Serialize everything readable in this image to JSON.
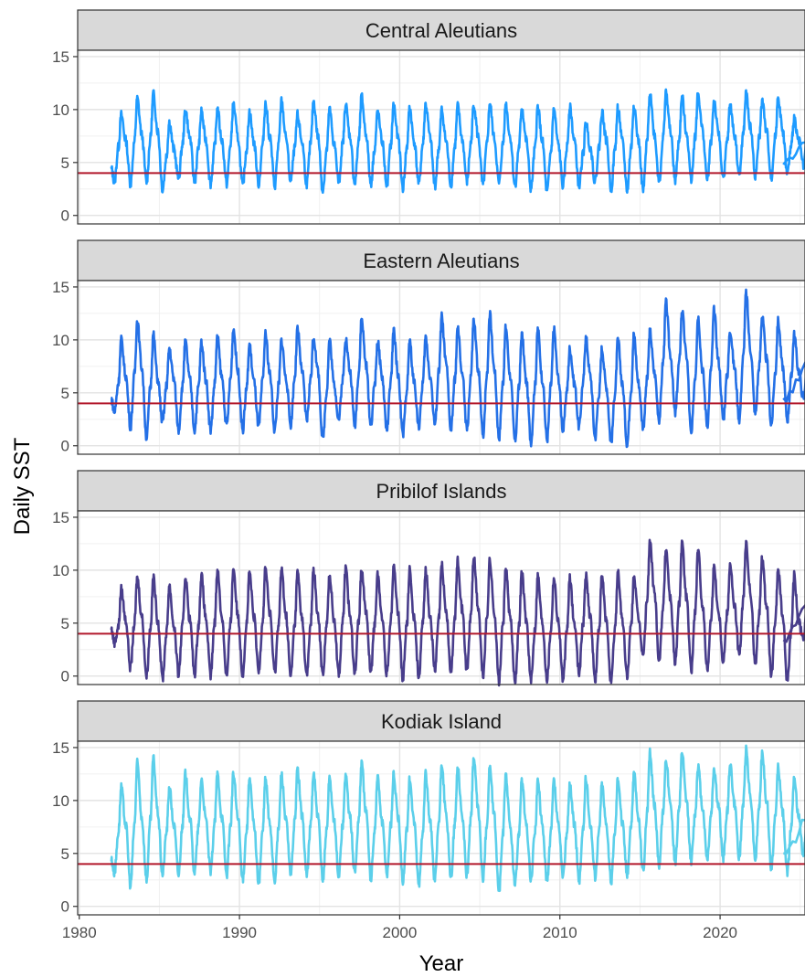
{
  "chart_data": {
    "type": "line",
    "xlabel": "Year",
    "ylabel": "Daily SST",
    "xlim": [
      1979.9,
      2025.3
    ],
    "ylim": [
      -0.8,
      15.6
    ],
    "x_ticks": [
      1980,
      1990,
      2000,
      2010,
      2020
    ],
    "y_ticks": [
      0,
      5,
      10,
      15
    ],
    "grid": true,
    "legend": "none",
    "reference_line": {
      "y": 4,
      "color": "#b2182b"
    },
    "panels": [
      {
        "name": "Central Aleutians",
        "color": "#1e9bff",
        "summer_peaks": [
          9.5,
          11.0,
          11.5,
          8.8,
          10.0,
          9.8,
          10.0,
          10.5,
          9.8,
          10.5,
          10.8,
          9.5,
          10.8,
          10.0,
          10.5,
          11.2,
          9.8,
          10.5,
          10.2,
          10.5,
          10.0,
          10.3,
          10.5,
          10.6,
          10.5,
          10.2,
          10.3,
          10.0,
          10.2,
          8.8,
          9.8,
          10.2,
          10.5,
          11.7,
          11.6,
          11.2,
          11.5,
          10.8,
          10.5,
          11.5,
          10.8,
          11.2,
          9.2,
          10.0
        ],
        "winter_troughs": [
          3.5,
          3.0,
          3.2,
          2.5,
          3.5,
          3.2,
          3.0,
          3.0,
          2.8,
          3.0,
          2.8,
          3.2,
          3.0,
          2.4,
          3.2,
          3.0,
          3.0,
          2.9,
          2.6,
          3.0,
          2.8,
          2.9,
          3.2,
          2.8,
          3.0,
          2.8,
          2.5,
          2.2,
          2.8,
          2.8,
          3.2,
          2.5,
          2.4,
          2.4,
          3.2,
          3.3,
          3.5,
          3.4,
          3.5,
          3.8,
          3.8,
          3.6,
          4.0,
          4.8
        ]
      },
      {
        "name": "Eastern Aleutians",
        "color": "#2470e6",
        "summer_peaks": [
          10.0,
          11.8,
          10.5,
          9.2,
          9.8,
          9.8,
          10.2,
          11.0,
          9.5,
          10.5,
          10.0,
          11.0,
          10.3,
          10.0,
          10.2,
          12.0,
          9.8,
          10.8,
          9.8,
          10.2,
          12.2,
          11.0,
          11.8,
          12.5,
          11.2,
          10.5,
          11.0,
          11.0,
          9.2,
          10.2,
          9.2,
          10.0,
          10.5,
          10.8,
          13.5,
          12.8,
          12.2,
          12.8,
          11.0,
          14.4,
          12.2,
          11.8,
          10.5,
          11.3
        ],
        "winter_troughs": [
          2.0,
          1.8,
          0.8,
          2.2,
          1.5,
          1.5,
          1.5,
          1.8,
          1.5,
          1.8,
          1.5,
          2.0,
          2.5,
          0.5,
          2.5,
          2.0,
          2.0,
          1.5,
          1.0,
          1.8,
          2.0,
          1.5,
          1.5,
          1.0,
          0.8,
          0.5,
          0.4,
          0.6,
          1.5,
          1.8,
          0.8,
          0.3,
          0.2,
          1.8,
          2.5,
          3.0,
          1.0,
          2.0,
          2.5,
          2.5,
          3.0,
          2.0,
          2.5,
          4.5
        ]
      },
      {
        "name": "Pribilof Islands",
        "color": "#483d8b",
        "summer_peaks": [
          8.2,
          9.3,
          9.3,
          8.5,
          9.3,
          9.5,
          10.0,
          10.2,
          9.8,
          10.2,
          10.0,
          9.8,
          10.0,
          9.5,
          10.2,
          10.2,
          9.5,
          10.5,
          10.0,
          10.0,
          10.5,
          11.0,
          11.2,
          11.0,
          10.2,
          9.8,
          9.5,
          9.3,
          9.2,
          9.5,
          9.4,
          9.8,
          9.5,
          12.7,
          12.0,
          12.5,
          11.8,
          10.3,
          10.5,
          12.4,
          11.2,
          10.2,
          9.5,
          10.6
        ],
        "winter_troughs": [
          1.2,
          0.8,
          0.0,
          -0.2,
          0.2,
          0.2,
          0.0,
          0.0,
          0.2,
          0.4,
          0.3,
          0.0,
          0.0,
          0.2,
          0.2,
          0.5,
          0.5,
          0.2,
          -0.2,
          0.0,
          0.5,
          0.3,
          0.5,
          0.0,
          -0.5,
          -0.4,
          -0.5,
          -0.2,
          -0.4,
          0.4,
          -0.4,
          -0.6,
          0.0,
          2.0,
          1.5,
          1.2,
          0.5,
          0.7,
          1.5,
          2.0,
          1.0,
          0.0,
          -0.5,
          3.4
        ]
      },
      {
        "name": "Kodiak Island",
        "color": "#5bcfea",
        "summer_peaks": [
          11.2,
          13.5,
          14.0,
          11.2,
          12.5,
          12.0,
          12.5,
          12.5,
          12.0,
          12.0,
          12.5,
          13.0,
          12.5,
          12.2,
          12.5,
          13.5,
          12.2,
          12.5,
          12.0,
          12.5,
          13.5,
          13.2,
          14.0,
          13.2,
          12.5,
          12.0,
          11.8,
          11.8,
          11.5,
          12.0,
          11.5,
          12.2,
          12.5,
          14.5,
          14.0,
          14.5,
          13.2,
          13.0,
          13.5,
          14.8,
          14.5,
          13.2,
          12.3,
          12.5
        ],
        "winter_troughs": [
          3.0,
          2.0,
          2.5,
          3.0,
          3.0,
          3.2,
          3.2,
          3.0,
          2.5,
          2.2,
          2.5,
          3.0,
          3.0,
          2.5,
          3.0,
          3.2,
          2.6,
          3.0,
          2.5,
          2.0,
          2.5,
          2.6,
          3.0,
          2.6,
          1.3,
          2.0,
          2.5,
          2.3,
          2.8,
          2.4,
          2.8,
          2.3,
          3.0,
          3.4,
          4.0,
          4.2,
          4.3,
          4.5,
          4.5,
          4.6,
          4.5,
          3.5,
          3.2,
          5.0
        ]
      }
    ]
  }
}
